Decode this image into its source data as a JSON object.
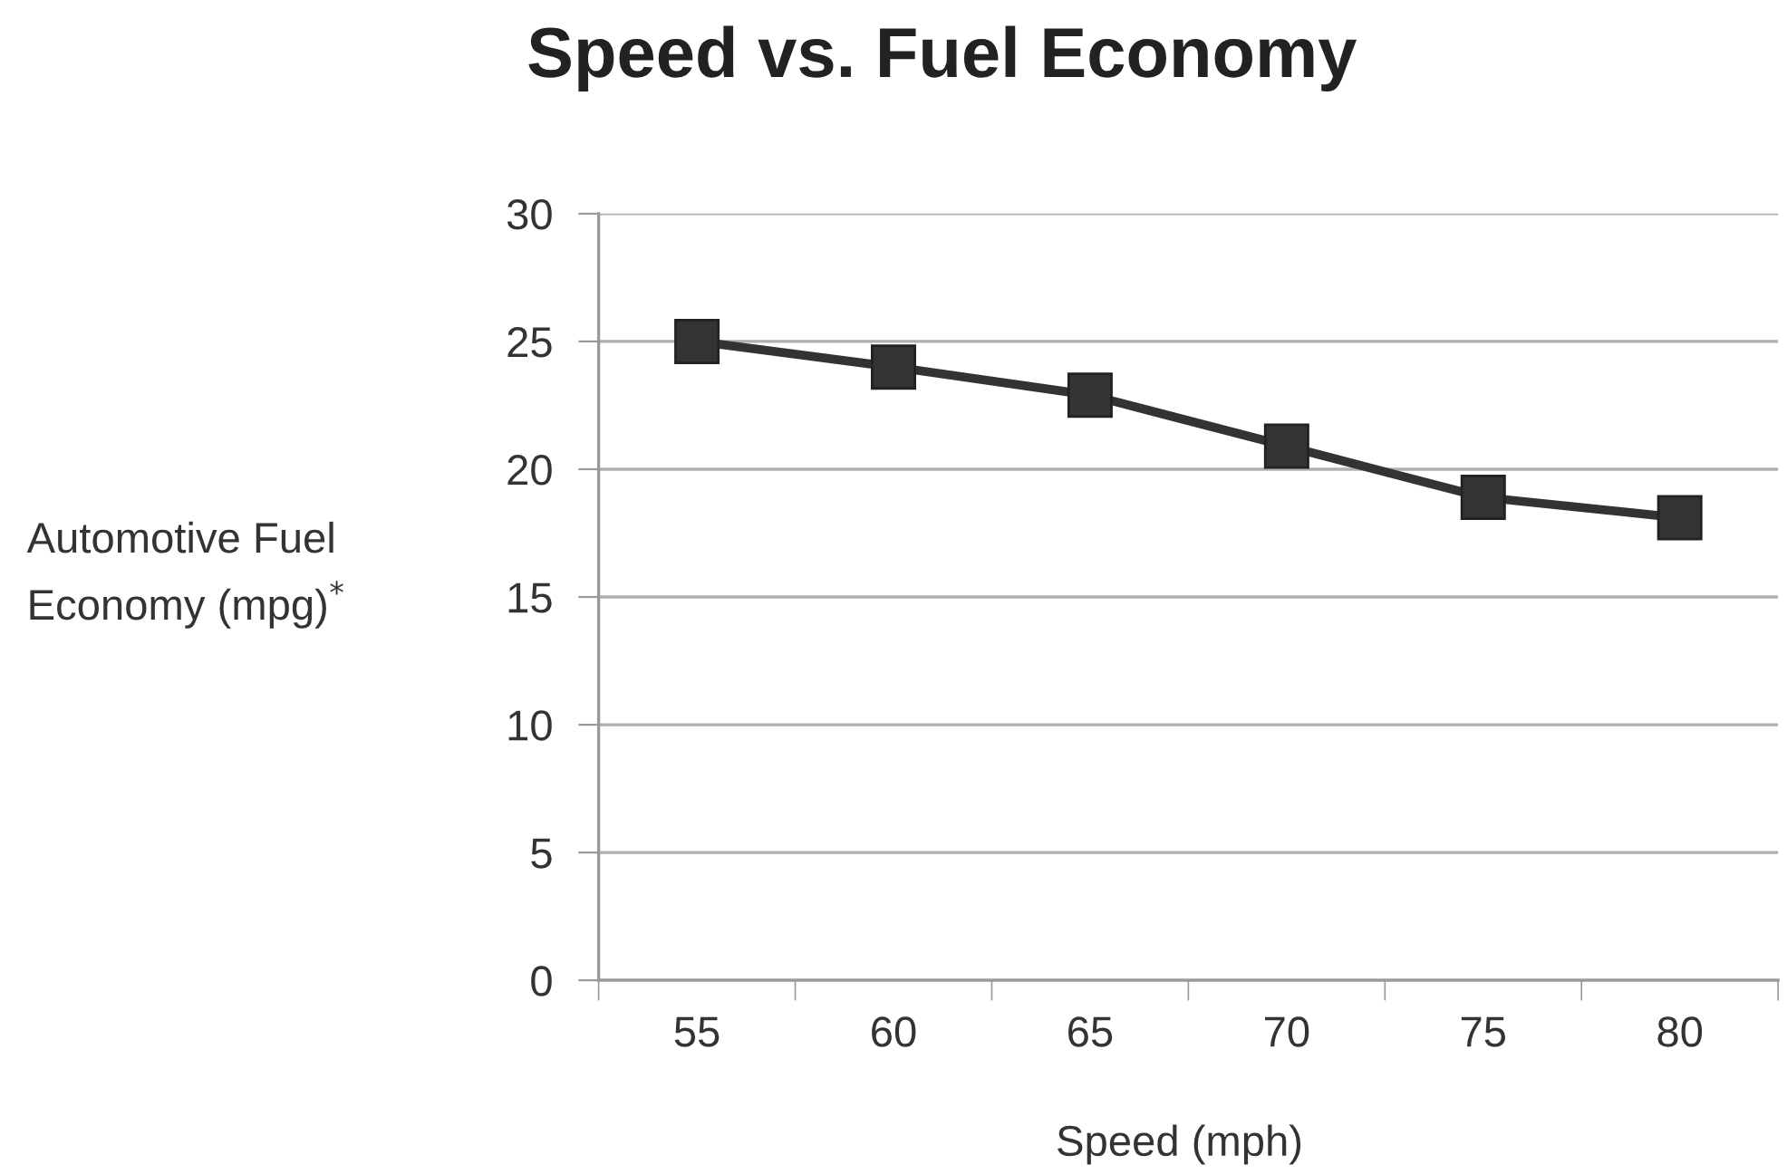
{
  "chart_data": {
    "type": "line",
    "title": "Speed vs. Fuel Economy",
    "xlabel": "Speed (mph)",
    "ylabel": "Automotive Fuel\nEconomy (mpg)$^{*}$",
    "categories": [
      "55",
      "60",
      "65",
      "70",
      "75",
      "80"
    ],
    "series": [
      {
        "color": "#333333",
        "values": [
          25.0,
          24.0,
          22.9,
          20.9,
          18.9,
          18.1
        ]
      }
    ],
    "ylim": [
      0,
      30
    ],
    "yticks": [
      0,
      5,
      10,
      15,
      20,
      25,
      30
    ],
    "grid": "y",
    "marker": "square",
    "line_style": "solid",
    "legend": false
  }
}
